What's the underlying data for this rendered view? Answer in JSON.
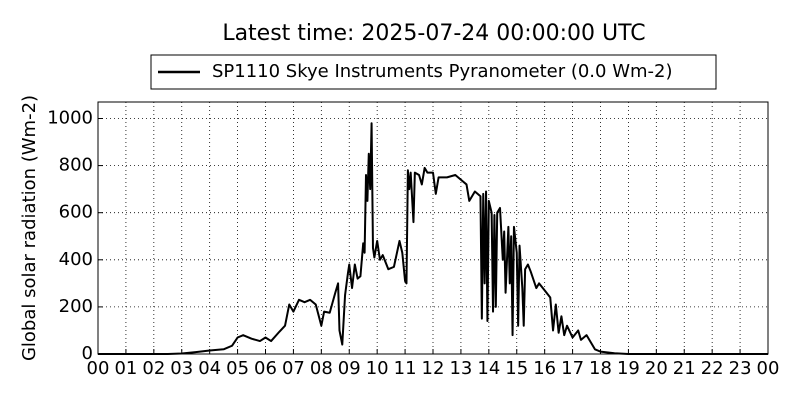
{
  "chart_data": {
    "type": "line",
    "title": "Latest time: 2025-07-24 00:00:00 UTC",
    "ylabel": "Global solar radiation (Wm-2)",
    "grid": true,
    "xlim": [
      0,
      24
    ],
    "ylim": [
      0,
      1070
    ],
    "yticks": [
      0,
      200,
      400,
      600,
      800,
      1000
    ],
    "xticks": [
      {
        "value": 0,
        "label": "00"
      },
      {
        "value": 1,
        "label": "01"
      },
      {
        "value": 2,
        "label": "02"
      },
      {
        "value": 3,
        "label": "03"
      },
      {
        "value": 4,
        "label": "04"
      },
      {
        "value": 5,
        "label": "05"
      },
      {
        "value": 6,
        "label": "06"
      },
      {
        "value": 7,
        "label": "07"
      },
      {
        "value": 8,
        "label": "08"
      },
      {
        "value": 9,
        "label": "09"
      },
      {
        "value": 10,
        "label": "10"
      },
      {
        "value": 11,
        "label": "11"
      },
      {
        "value": 12,
        "label": "12"
      },
      {
        "value": 13,
        "label": "13"
      },
      {
        "value": 14,
        "label": "14"
      },
      {
        "value": 15,
        "label": "15"
      },
      {
        "value": 16,
        "label": "16"
      },
      {
        "value": 17,
        "label": "17"
      },
      {
        "value": 18,
        "label": "18"
      },
      {
        "value": 19,
        "label": "19"
      },
      {
        "value": 20,
        "label": "20"
      },
      {
        "value": 21,
        "label": "21"
      },
      {
        "value": 22,
        "label": "22"
      },
      {
        "value": 23,
        "label": "23"
      },
      {
        "value": 24,
        "label": "00"
      }
    ],
    "x": [
      0,
      2.5,
      3,
      3.5,
      4,
      4.5,
      4.8,
      5,
      5.2,
      5.5,
      5.8,
      6,
      6.2,
      6.5,
      6.7,
      6.85,
      7,
      7.2,
      7.4,
      7.6,
      7.8,
      8,
      8.1,
      8.3,
      8.5,
      8.6,
      8.65,
      8.75,
      8.85,
      8.95,
      9,
      9.1,
      9.2,
      9.3,
      9.4,
      9.5,
      9.55,
      9.6,
      9.65,
      9.7,
      9.75,
      9.8,
      9.85,
      9.9,
      10,
      10.1,
      10.2,
      10.4,
      10.6,
      10.8,
      10.9,
      11,
      11.05,
      11.1,
      11.15,
      11.2,
      11.3,
      11.35,
      11.5,
      11.6,
      11.7,
      11.8,
      12,
      12.1,
      12.2,
      12.5,
      12.8,
      13,
      13.2,
      13.3,
      13.5,
      13.7,
      13.75,
      13.8,
      13.85,
      13.9,
      13.95,
      14,
      14.1,
      14.15,
      14.2,
      14.25,
      14.3,
      14.4,
      14.5,
      14.55,
      14.6,
      14.7,
      14.75,
      14.8,
      14.85,
      14.9,
      15,
      15.05,
      15.1,
      15.2,
      15.25,
      15.3,
      15.4,
      15.5,
      15.7,
      15.8,
      16,
      16.2,
      16.3,
      16.4,
      16.5,
      16.6,
      16.7,
      16.8,
      17,
      17.2,
      17.3,
      17.5,
      17.8,
      18,
      18.5,
      19,
      24
    ],
    "series": [
      {
        "name": "SP1110 Skye Instruments Pyranometer (0.0 Wm-2)",
        "color": "#000000",
        "values": [
          0,
          0,
          2,
          8,
          15,
          20,
          35,
          70,
          80,
          65,
          55,
          70,
          55,
          95,
          120,
          210,
          180,
          230,
          220,
          230,
          210,
          120,
          180,
          175,
          260,
          300,
          100,
          40,
          250,
          340,
          380,
          280,
          380,
          320,
          330,
          470,
          430,
          760,
          650,
          850,
          700,
          980,
          450,
          410,
          480,
          400,
          420,
          360,
          370,
          480,
          430,
          310,
          300,
          780,
          700,
          770,
          560,
          770,
          760,
          720,
          790,
          770,
          770,
          680,
          750,
          750,
          760,
          740,
          720,
          650,
          690,
          670,
          150,
          680,
          300,
          690,
          140,
          650,
          600,
          180,
          590,
          200,
          600,
          620,
          400,
          520,
          260,
          540,
          300,
          500,
          80,
          540,
          430,
          120,
          460,
          280,
          120,
          360,
          380,
          350,
          280,
          300,
          270,
          240,
          100,
          210,
          90,
          160,
          80,
          120,
          70,
          100,
          60,
          80,
          20,
          10,
          3,
          0,
          0
        ]
      }
    ]
  }
}
